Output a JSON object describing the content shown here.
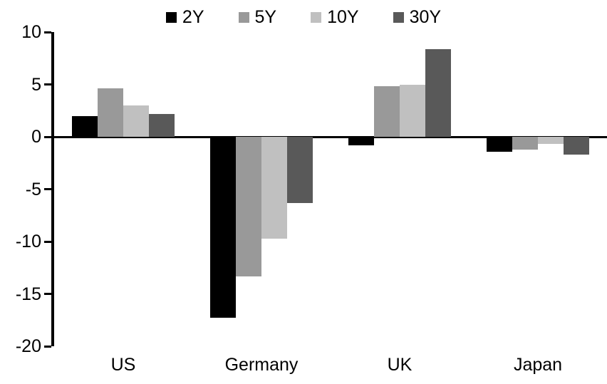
{
  "chart_data": {
    "type": "bar",
    "title": "",
    "xlabel": "",
    "ylabel": "",
    "categories": [
      "US",
      "Germany",
      "UK",
      "Japan"
    ],
    "series": [
      {
        "name": "2Y",
        "color": "#000000",
        "values": [
          2.0,
          -17.3,
          -0.8,
          -1.4
        ]
      },
      {
        "name": "5Y",
        "color": "#999999",
        "values": [
          4.6,
          -13.3,
          4.8,
          -1.2
        ]
      },
      {
        "name": "10Y",
        "color": "#c0c0c0",
        "values": [
          3.0,
          -9.7,
          5.0,
          -0.7
        ]
      },
      {
        "name": "30Y",
        "color": "#595959",
        "values": [
          2.2,
          -6.3,
          8.4,
          -1.7
        ]
      }
    ],
    "ylim": [
      -20,
      10
    ],
    "yticks": [
      10,
      5,
      0,
      -5,
      -10,
      -15,
      -20
    ],
    "grid": false,
    "legend_position": "top",
    "axis_color": "#000000",
    "background_color": "#ffffff"
  }
}
